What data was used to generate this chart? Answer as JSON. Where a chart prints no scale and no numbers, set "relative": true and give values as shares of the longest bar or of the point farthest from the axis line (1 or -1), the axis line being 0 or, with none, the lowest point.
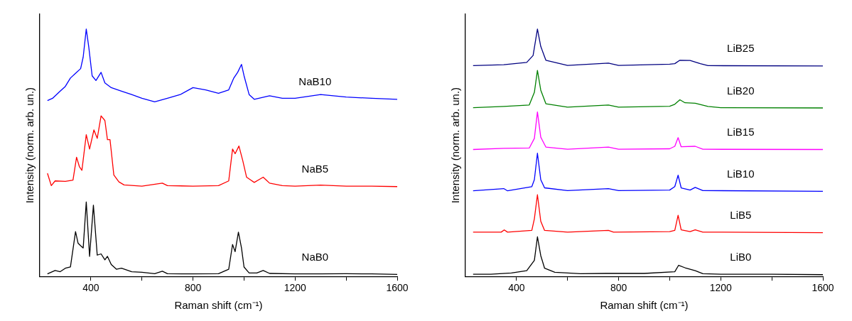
{
  "chart_data": [
    {
      "type": "line",
      "relative": true,
      "xlabel": "Raman shift (cm⁻¹)",
      "ylabel": "Intensity (norm. arb. un.)",
      "xlim": [
        200,
        1600
      ],
      "xticks": [
        400,
        {
          "value": 600,
          "label": null
        },
        800,
        {
          "value": 1000,
          "label": null
        },
        1200,
        {
          "value": 1400,
          "label": null
        },
        1600
      ],
      "tick_labels": "x",
      "grid": false,
      "legend": false,
      "series": [
        {
          "name": "NaB0",
          "color": "#000000",
          "x": [
            230,
            260,
            280,
            300,
            320,
            340,
            350,
            360,
            370,
            382,
            395,
            410,
            425,
            440,
            455,
            465,
            480,
            500,
            520,
            560,
            600,
            650,
            680,
            700,
            800,
            900,
            940,
            955,
            965,
            978,
            990,
            1000,
            1020,
            1050,
            1075,
            1100,
            1200,
            1300,
            1400,
            1500,
            1600
          ],
          "values": [
            0.01,
            0.024,
            0.019,
            0.033,
            0.038,
            0.181,
            0.134,
            0.124,
            0.115,
            0.301,
            0.081,
            0.288,
            0.086,
            0.091,
            0.067,
            0.081,
            0.048,
            0.029,
            0.033,
            0.019,
            0.017,
            0.011,
            0.021,
            0.011,
            0.01,
            0.011,
            0.029,
            0.129,
            0.1,
            0.179,
            0.115,
            0.038,
            0.014,
            0.014,
            0.024,
            0.012,
            0.01,
            0.01,
            0.011,
            0.01,
            0.008
          ]
        },
        {
          "name": "NaB5",
          "color": "#ff0000",
          "x": [
            230,
            245,
            260,
            300,
            330,
            344,
            355,
            365,
            382,
            395,
            412,
            425,
            440,
            455,
            465,
            475,
            480,
            490,
            510,
            530,
            600,
            680,
            700,
            800,
            900,
            940,
            955,
            965,
            980,
            995,
            1010,
            1040,
            1075,
            1100,
            1150,
            1200,
            1300,
            1400,
            1500,
            1600
          ],
          "values": [
            0.417,
            0.367,
            0.386,
            0.384,
            0.389,
            0.482,
            0.444,
            0.429,
            0.573,
            0.515,
            0.592,
            0.558,
            0.649,
            0.63,
            0.553,
            0.553,
            0.506,
            0.41,
            0.382,
            0.37,
            0.365,
            0.377,
            0.367,
            0.365,
            0.367,
            0.386,
            0.515,
            0.496,
            0.527,
            0.468,
            0.401,
            0.38,
            0.401,
            0.377,
            0.367,
            0.365,
            0.369,
            0.365,
            0.365,
            0.363
          ]
        },
        {
          "name": "NaB10",
          "color": "#0000ff",
          "x": [
            230,
            250,
            280,
            300,
            320,
            340,
            360,
            370,
            382,
            392,
            405,
            420,
            440,
            455,
            480,
            520,
            560,
            600,
            650,
            700,
            750,
            800,
            850,
            900,
            940,
            960,
            975,
            990,
            1000,
            1020,
            1040,
            1100,
            1150,
            1200,
            1300,
            1400,
            1500,
            1600
          ],
          "values": [
            0.711,
            0.72,
            0.749,
            0.768,
            0.802,
            0.821,
            0.84,
            0.887,
            1,
            0.926,
            0.811,
            0.792,
            0.825,
            0.782,
            0.763,
            0.749,
            0.735,
            0.72,
            0.706,
            0.72,
            0.735,
            0.763,
            0.754,
            0.74,
            0.754,
            0.802,
            0.825,
            0.857,
            0.811,
            0.735,
            0.716,
            0.73,
            0.72,
            0.72,
            0.735,
            0.725,
            0.72,
            0.716
          ]
        }
      ]
    },
    {
      "type": "line",
      "relative": true,
      "xlabel": "Raman shift (cm⁻¹)",
      "ylabel": "Intensity (norm. arb. un.)",
      "xlim": [
        200,
        1600
      ],
      "xticks": [
        400,
        {
          "value": 600,
          "label": null
        },
        800,
        {
          "value": 1000,
          "label": null
        },
        1200,
        {
          "value": 1400,
          "label": null
        },
        1600
      ],
      "tick_labels": "x",
      "grid": false,
      "legend": false,
      "series": [
        {
          "name": "LiB0",
          "color": "#000000",
          "x": [
            230,
            300,
            380,
            440,
            470,
            482,
            495,
            510,
            550,
            650,
            750,
            900,
            1020,
            1035,
            1060,
            1100,
            1130,
            1200,
            1400,
            1600
          ],
          "values": [
            0.009,
            0.009,
            0.014,
            0.023,
            0.065,
            0.16,
            0.084,
            0.033,
            0.017,
            0.011,
            0.012,
            0.012,
            0.019,
            0.045,
            0.035,
            0.023,
            0.011,
            0.009,
            0.009,
            0.007
          ]
        },
        {
          "name": "LiB5",
          "color": "#ff0000",
          "x": [
            230,
            340,
            352,
            365,
            460,
            470,
            482,
            495,
            510,
            600,
            760,
            780,
            1000,
            1020,
            1033,
            1045,
            1080,
            1100,
            1130,
            1600
          ],
          "values": [
            0.179,
            0.179,
            0.188,
            0.179,
            0.186,
            0.233,
            0.33,
            0.223,
            0.186,
            0.179,
            0.186,
            0.179,
            0.181,
            0.186,
            0.247,
            0.188,
            0.181,
            0.188,
            0.179,
            0.177
          ]
        },
        {
          "name": "LiB10",
          "color": "#0000ff",
          "x": [
            230,
            350,
            365,
            460,
            470,
            482,
            495,
            510,
            600,
            760,
            800,
            1000,
            1020,
            1033,
            1045,
            1080,
            1100,
            1130,
            1600
          ],
          "values": [
            0.346,
            0.355,
            0.346,
            0.363,
            0.391,
            0.498,
            0.391,
            0.358,
            0.347,
            0.355,
            0.347,
            0.349,
            0.363,
            0.409,
            0.358,
            0.349,
            0.36,
            0.347,
            0.344
          ]
        },
        {
          "name": "LiB15",
          "color": "#ff00ff",
          "x": [
            230,
            350,
            450,
            470,
            482,
            495,
            515,
            600,
            760,
            800,
            1000,
            1020,
            1033,
            1045,
            1100,
            1130,
            1600
          ],
          "values": [
            0.513,
            0.518,
            0.519,
            0.558,
            0.665,
            0.563,
            0.523,
            0.514,
            0.523,
            0.514,
            0.516,
            0.526,
            0.561,
            0.524,
            0.526,
            0.514,
            0.513
          ]
        },
        {
          "name": "LiB20",
          "color": "#008000",
          "x": [
            230,
            350,
            450,
            470,
            482,
            495,
            515,
            600,
            760,
            800,
            1000,
            1020,
            1040,
            1060,
            1100,
            1150,
            1200,
            1600
          ],
          "values": [
            0.682,
            0.687,
            0.693,
            0.744,
            0.833,
            0.753,
            0.698,
            0.684,
            0.693,
            0.684,
            0.688,
            0.696,
            0.714,
            0.702,
            0.7,
            0.687,
            0.682,
            0.681
          ]
        },
        {
          "name": "LiB25",
          "color": "#000080",
          "x": [
            230,
            350,
            440,
            465,
            482,
            495,
            515,
            600,
            760,
            800,
            1000,
            1020,
            1040,
            1080,
            1120,
            1150,
            1600
          ],
          "values": [
            0.852,
            0.856,
            0.865,
            0.893,
            1,
            0.93,
            0.874,
            0.853,
            0.862,
            0.853,
            0.858,
            0.86,
            0.874,
            0.873,
            0.86,
            0.852,
            0.851
          ]
        }
      ]
    }
  ]
}
